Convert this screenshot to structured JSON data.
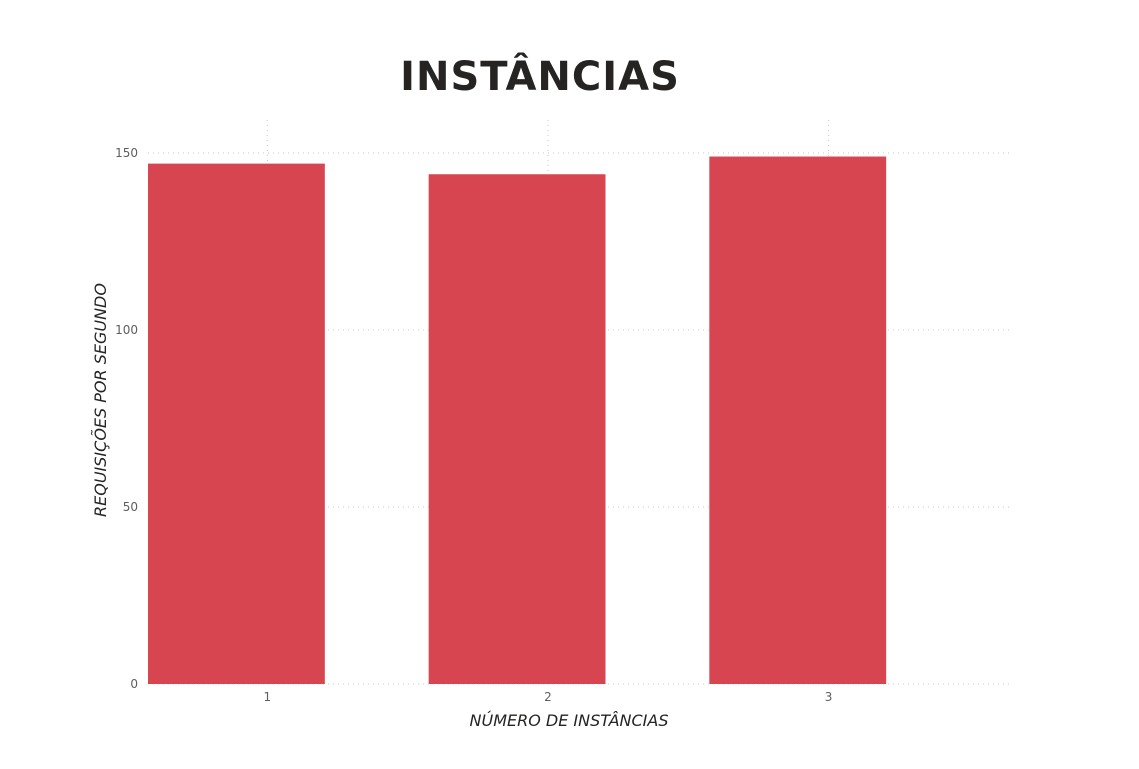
{
  "chart_data": {
    "type": "bar",
    "title": "INSTÂNCIAS",
    "xlabel": "NÚMERO DE INSTÂNCIAS",
    "ylabel": "REQUISIÇÕES POR SEGUNDO",
    "categories": [
      "1",
      "2",
      "3"
    ],
    "values": [
      147,
      144,
      149
    ],
    "ylim": [
      0,
      150
    ],
    "yticks": [
      0,
      50,
      100,
      150
    ],
    "grid": true,
    "legend": "none",
    "bar_color": "#d64550",
    "gridline_color": "#c8c6c4"
  }
}
